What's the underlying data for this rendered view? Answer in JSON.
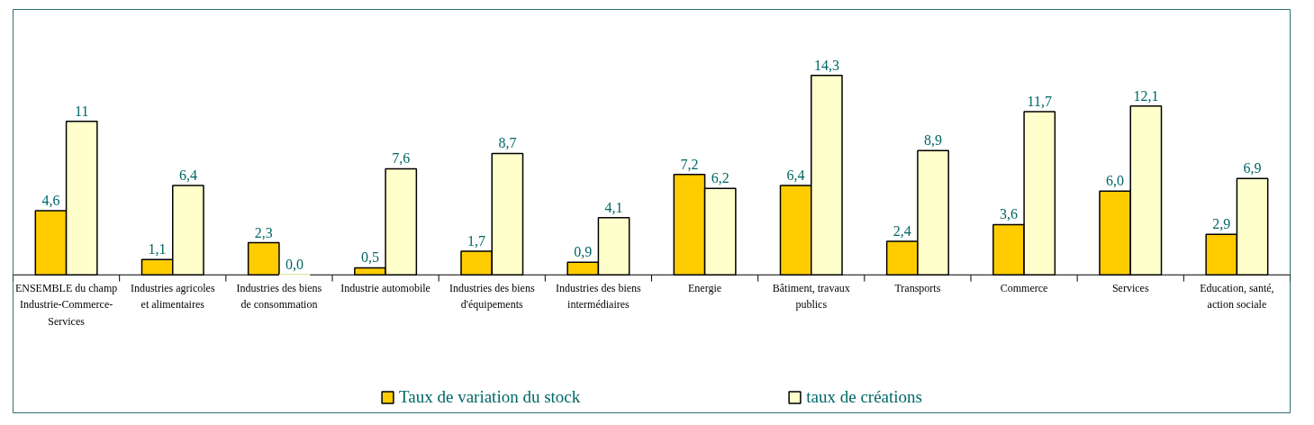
{
  "chart_data": {
    "type": "bar",
    "categories": [
      "ENSEMBLE du champ Industrie-Commerce-Services",
      "Industries agricoles et alimentaires",
      "Industries des biens de consommation",
      "Industrie automobile",
      "Industries des biens d'équipements",
      "Industries des biens intermédiaires",
      "Energie",
      "Bâtiment, travaux publics",
      "Transports",
      "Commerce",
      "Services",
      "Education, santé, action sociale"
    ],
    "series": [
      {
        "name": "Taux de variation du stock",
        "color": "#ffcc00",
        "values": [
          4.6,
          1.1,
          2.3,
          0.5,
          1.7,
          0.9,
          7.2,
          6.4,
          2.4,
          3.6,
          6.0,
          2.9
        ],
        "value_labels": [
          "4,6",
          "1,1",
          "2,3",
          "0,5",
          "1,7",
          "0,9",
          "7,2",
          "6,4",
          "2,4",
          "3,6",
          "6,0",
          "2,9"
        ]
      },
      {
        "name": "taux de créations",
        "color": "#ffffcc",
        "values": [
          11,
          6.4,
          0.0,
          7.6,
          8.7,
          4.1,
          6.2,
          14.3,
          8.9,
          11.7,
          12.1,
          6.9
        ],
        "value_labels": [
          "11",
          "6,4",
          "0,0",
          "7,6",
          "8,7",
          "4,1",
          "6,2",
          "14,3",
          "8,9",
          "11,7",
          "12,1",
          "6,9"
        ]
      }
    ],
    "legend": "bottom"
  }
}
